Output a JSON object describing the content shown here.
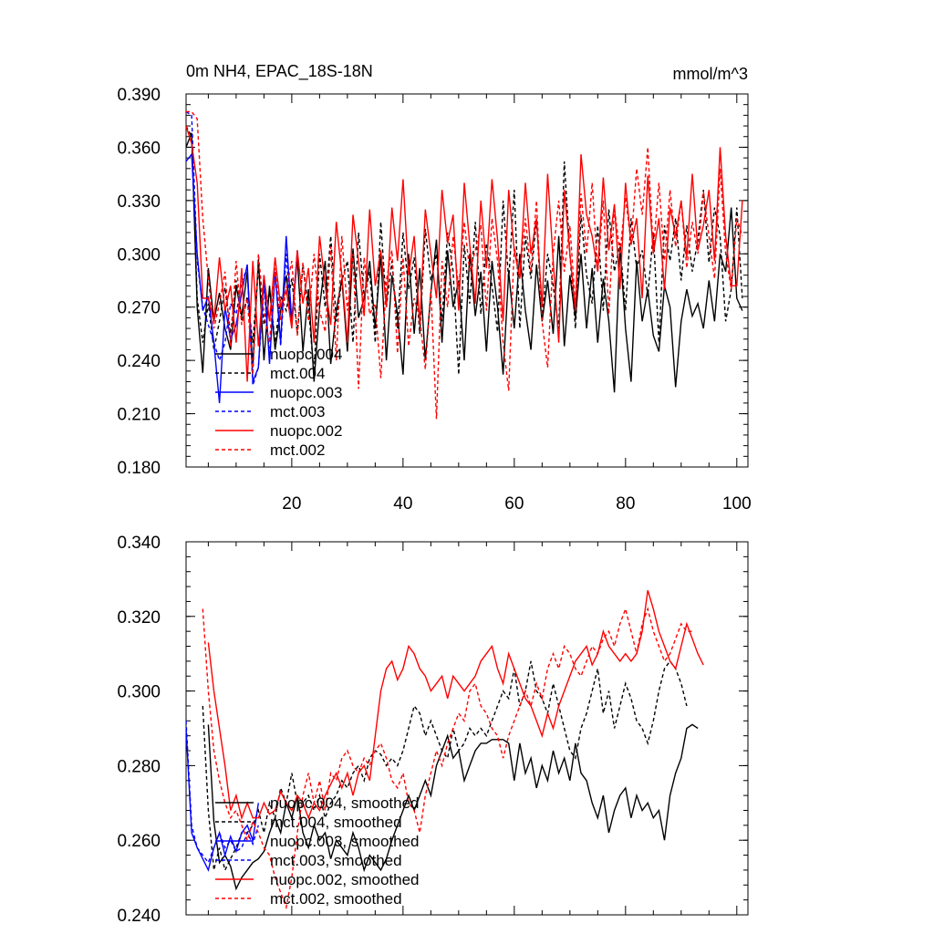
{
  "chart_data": [
    {
      "type": "line",
      "title_left": "0m NH4, EPAC_18S-18N",
      "title_right": "mmol/m^3",
      "xlabel": "",
      "ylabel": "",
      "xlim": [
        1,
        102
      ],
      "ylim": [
        0.18,
        0.39
      ],
      "xticks": [
        20,
        40,
        60,
        80,
        100
      ],
      "yticks": [
        0.18,
        0.21,
        0.24,
        0.27,
        0.3,
        0.33,
        0.36,
        0.39
      ],
      "ytick_labels": [
        "0.180",
        "0.210",
        "0.240",
        "0.270",
        "0.300",
        "0.330",
        "0.360",
        "0.390"
      ],
      "xtick_labels": [
        "20",
        "40",
        "60",
        "80",
        "100"
      ],
      "legend_position": "lower-left",
      "series": [
        {
          "name": "nuopc.004",
          "color": "#000000",
          "dash": "solid",
          "x_start": 1,
          "values": [
            0.36,
            0.368,
            0.27,
            0.233,
            0.292,
            0.262,
            0.278,
            0.258,
            0.246,
            0.282,
            0.265,
            0.29,
            0.236,
            0.297,
            0.24,
            0.282,
            0.246,
            0.268,
            0.288,
            0.262,
            0.298,
            0.245,
            0.28,
            0.228,
            0.27,
            0.296,
            0.238,
            0.268,
            0.286,
            0.245,
            0.303,
            0.264,
            0.275,
            0.296,
            0.258,
            0.3,
            0.24,
            0.288,
            0.266,
            0.232,
            0.3,
            0.255,
            0.292,
            0.24,
            0.278,
            0.308,
            0.25,
            0.302,
            0.27,
            0.285,
            0.24,
            0.3,
            0.265,
            0.29,
            0.245,
            0.296,
            0.27,
            0.232,
            0.29,
            0.258,
            0.3,
            0.268,
            0.246,
            0.294,
            0.262,
            0.285,
            0.255,
            0.31,
            0.248,
            0.288,
            0.264,
            0.3,
            0.258,
            0.292,
            0.25,
            0.286,
            0.262,
            0.222,
            0.304,
            0.258,
            0.228,
            0.296,
            0.262,
            0.28,
            0.254,
            0.245,
            0.282,
            0.27,
            0.225,
            0.262,
            0.28,
            0.265,
            0.272,
            0.258,
            0.285,
            0.262,
            0.3,
            0.29,
            0.326,
            0.275,
            0.268
          ]
        },
        {
          "name": "mct.004",
          "color": "#000000",
          "dash": "dashed",
          "x_start": 1,
          "values": [
            0.372,
            0.366,
            0.275,
            0.25,
            0.272,
            0.246,
            0.262,
            0.281,
            0.255,
            0.285,
            0.262,
            0.276,
            0.25,
            0.292,
            0.26,
            0.28,
            0.25,
            0.276,
            0.268,
            0.286,
            0.255,
            0.294,
            0.27,
            0.232,
            0.3,
            0.27,
            0.31,
            0.262,
            0.285,
            0.296,
            0.25,
            0.312,
            0.275,
            0.29,
            0.25,
            0.318,
            0.27,
            0.296,
            0.258,
            0.312,
            0.28,
            0.298,
            0.255,
            0.314,
            0.285,
            0.3,
            0.262,
            0.312,
            0.29,
            0.232,
            0.305,
            0.272,
            0.318,
            0.266,
            0.306,
            0.282,
            0.256,
            0.33,
            0.285,
            0.336,
            0.258,
            0.31,
            0.286,
            0.32,
            0.262,
            0.3,
            0.282,
            0.258,
            0.352,
            0.3,
            0.258,
            0.322,
            0.288,
            0.272,
            0.316,
            0.268,
            0.325,
            0.29,
            0.306,
            0.268,
            0.32,
            0.292,
            0.302,
            0.276,
            0.312,
            0.25,
            0.316,
            0.296,
            0.32,
            0.285,
            0.316,
            0.29,
            0.308,
            0.336,
            0.295,
            0.326,
            0.31,
            0.262,
            0.28,
            0.326,
            0.275
          ]
        },
        {
          "name": "nuopc.003",
          "color": "#0000ff",
          "dash": "solid",
          "x_start": 1,
          "values": [
            0.352,
            0.356,
            0.3,
            0.268,
            0.276,
            0.25,
            0.216,
            0.27,
            0.252,
            0.26,
            0.278,
            0.294,
            0.228,
            0.236,
            0.288,
            0.238,
            0.29,
            0.25,
            0.31,
            0.262,
            0.302
          ]
        },
        {
          "name": "mct.003",
          "color": "#0000ff",
          "dash": "dashed",
          "x_start": 1,
          "values": [
            0.38,
            0.378,
            0.296,
            0.27,
            0.26,
            0.25,
            0.24,
            0.25,
            0.272,
            0.266,
            0.284,
            0.292,
            0.226,
            0.236,
            0.282,
            0.242,
            0.29,
            0.248,
            0.3,
            0.26,
            0.298
          ]
        },
        {
          "name": "nuopc.002",
          "color": "#ff0000",
          "dash": "solid",
          "x_start": 1,
          "values": [
            0.372,
            0.362,
            0.34,
            0.275,
            0.275,
            0.262,
            0.298,
            0.268,
            0.282,
            0.25,
            0.292,
            0.228,
            0.296,
            0.248,
            0.288,
            0.262,
            0.298,
            0.27,
            0.28,
            0.258,
            0.302,
            0.272,
            0.292,
            0.25,
            0.31,
            0.282,
            0.26,
            0.318,
            0.288,
            0.25,
            0.322,
            0.296,
            0.265,
            0.325,
            0.282,
            0.302,
            0.27,
            0.326,
            0.296,
            0.342,
            0.288,
            0.31,
            0.26,
            0.325,
            0.3,
            0.275,
            0.336,
            0.306,
            0.322,
            0.268,
            0.34,
            0.305,
            0.272,
            0.33,
            0.292,
            0.342,
            0.308,
            0.262,
            0.336,
            0.302,
            0.286,
            0.34,
            0.3,
            0.32,
            0.27,
            0.345,
            0.296,
            0.25,
            0.336,
            0.3,
            0.268,
            0.356,
            0.322,
            0.31,
            0.29,
            0.343,
            0.302,
            0.328,
            0.28,
            0.34,
            0.305,
            0.32,
            0.275,
            0.344,
            0.3,
            0.32,
            0.28,
            0.326,
            0.31,
            0.33,
            0.298,
            0.345,
            0.302,
            0.316,
            0.336,
            0.296,
            0.36,
            0.31,
            0.282,
            0.282,
            0.33
          ]
        },
        {
          "name": "mct.002",
          "color": "#ff0000",
          "dash": "dashed",
          "x_start": 1,
          "values": [
            0.38,
            0.38,
            0.376,
            0.32,
            0.286,
            0.258,
            0.272,
            0.29,
            0.248,
            0.296,
            0.26,
            0.275,
            0.232,
            0.3,
            0.266,
            0.25,
            0.292,
            0.262,
            0.28,
            0.296,
            0.254,
            0.295,
            0.262,
            0.3,
            0.268,
            0.256,
            0.304,
            0.24,
            0.31,
            0.268,
            0.3,
            0.224,
            0.298,
            0.266,
            0.272,
            0.23,
            0.285,
            0.302,
            0.244,
            0.298,
            0.248,
            0.275,
            0.264,
            0.235,
            0.28,
            0.207,
            0.296,
            0.27,
            0.31,
            0.28,
            0.318,
            0.29,
            0.302,
            0.316,
            0.268,
            0.32,
            0.296,
            0.25,
            0.223,
            0.304,
            0.286,
            0.32,
            0.29,
            0.33,
            0.262,
            0.236,
            0.3,
            0.33,
            0.29,
            0.316,
            0.27,
            0.334,
            0.3,
            0.34,
            0.29,
            0.33,
            0.266,
            0.326,
            0.3,
            0.332,
            0.306,
            0.348,
            0.322,
            0.36,
            0.302,
            0.34,
            0.296,
            0.336,
            0.304,
            0.33,
            0.292,
            0.318,
            0.3,
            0.335,
            0.31,
            0.286,
            0.348,
            0.3,
            0.28,
            0.32,
            0.31
          ]
        }
      ]
    },
    {
      "type": "line",
      "title_left": "",
      "title_right": "",
      "xlabel": "",
      "ylabel": "",
      "xlim": [
        1,
        102
      ],
      "ylim": [
        0.24,
        0.34
      ],
      "xticks": [
        20,
        40,
        60,
        80,
        100
      ],
      "yticks": [
        0.24,
        0.26,
        0.28,
        0.3,
        0.32,
        0.34
      ],
      "ytick_labels": [
        "0.240",
        "0.260",
        "0.280",
        "0.300",
        "0.320",
        "0.340"
      ],
      "xtick_labels": [],
      "legend_position": "lower-left",
      "series": [
        {
          "name": "nuopc.004, smoothed",
          "color": "#000000",
          "dash": "solid",
          "x_start": 5,
          "values": [
            0.291,
            0.265,
            0.254,
            0.256,
            0.253,
            0.247,
            0.25,
            0.252,
            0.254,
            0.255,
            0.257,
            0.262,
            0.266,
            0.262,
            0.27,
            0.266,
            0.272,
            0.262,
            0.258,
            0.264,
            0.26,
            0.262,
            0.255,
            0.26,
            0.258,
            0.256,
            0.262,
            0.258,
            0.252,
            0.256,
            0.254,
            0.252,
            0.255,
            0.26,
            0.264,
            0.268,
            0.272,
            0.268,
            0.272,
            0.276,
            0.272,
            0.28,
            0.284,
            0.288,
            0.282,
            0.284,
            0.276,
            0.28,
            0.284,
            0.286,
            0.286,
            0.287,
            0.287,
            0.287,
            0.286,
            0.276,
            0.286,
            0.278,
            0.282,
            0.274,
            0.28,
            0.276,
            0.284,
            0.278,
            0.282,
            0.276,
            0.286,
            0.278,
            0.276,
            0.27,
            0.266,
            0.272,
            0.262,
            0.268,
            0.272,
            0.274,
            0.266,
            0.272,
            0.268,
            0.27,
            0.266,
            0.268,
            0.26,
            0.272,
            0.278,
            0.282,
            0.29,
            0.291,
            0.29
          ]
        },
        {
          "name": "mct.004, smoothed",
          "color": "#000000",
          "dash": "dashed",
          "x_start": 4,
          "values": [
            0.296,
            0.268,
            0.252,
            0.258,
            0.252,
            0.255,
            0.258,
            0.262,
            0.262,
            0.264,
            0.268,
            0.262,
            0.27,
            0.266,
            0.274,
            0.27,
            0.278,
            0.27,
            0.27,
            0.272,
            0.268,
            0.272,
            0.266,
            0.27,
            0.272,
            0.276,
            0.274,
            0.278,
            0.28,
            0.276,
            0.282,
            0.284,
            0.283,
            0.28,
            0.282,
            0.28,
            0.284,
            0.29,
            0.296,
            0.294,
            0.288,
            0.292,
            0.288,
            0.284,
            0.282,
            0.29,
            0.284,
            0.286,
            0.29,
            0.288,
            0.29,
            0.288,
            0.292,
            0.296,
            0.3,
            0.298,
            0.306,
            0.296,
            0.3,
            0.308,
            0.3,
            0.298,
            0.294,
            0.302,
            0.296,
            0.29,
            0.284,
            0.282,
            0.29,
            0.294,
            0.3,
            0.306,
            0.294,
            0.3,
            0.29,
            0.296,
            0.302,
            0.298,
            0.292,
            0.29,
            0.286,
            0.292,
            0.3,
            0.306,
            0.308,
            0.306,
            0.302,
            0.296
          ]
        },
        {
          "name": "nuopc.003, smoothed",
          "color": "#0000ff",
          "dash": "solid",
          "x_start": 1,
          "values": [
            0.29,
            0.262,
            0.258,
            0.255,
            0.252,
            0.258,
            0.262,
            0.256,
            0.261,
            0.257,
            0.262,
            0.264,
            0.26,
            0.27
          ]
        },
        {
          "name": "mct.003, smoothed",
          "color": "#0000ff",
          "dash": "dashed",
          "x_start": 1,
          "values": [
            0.292,
            0.264,
            0.258,
            0.256,
            0.254,
            0.258,
            0.262,
            0.258,
            0.26,
            0.257,
            0.258,
            0.262,
            0.259,
            0.264
          ]
        },
        {
          "name": "nuopc.002, smoothed",
          "color": "#ff0000",
          "dash": "solid",
          "x_start": 5,
          "values": [
            0.313,
            0.3,
            0.29,
            0.28,
            0.268,
            0.272,
            0.266,
            0.27,
            0.266,
            0.266,
            0.27,
            0.267,
            0.268,
            0.273,
            0.27,
            0.268,
            0.272,
            0.27,
            0.266,
            0.27,
            0.268,
            0.272,
            0.275,
            0.278,
            0.274,
            0.278,
            0.272,
            0.278,
            0.28,
            0.276,
            0.288,
            0.3,
            0.306,
            0.308,
            0.303,
            0.306,
            0.312,
            0.31,
            0.306,
            0.304,
            0.3,
            0.302,
            0.304,
            0.298,
            0.304,
            0.302,
            0.3,
            0.302,
            0.304,
            0.308,
            0.31,
            0.312,
            0.306,
            0.302,
            0.31,
            0.306,
            0.302,
            0.298,
            0.296,
            0.292,
            0.288,
            0.294,
            0.29,
            0.296,
            0.3,
            0.304,
            0.308,
            0.31,
            0.312,
            0.307,
            0.31,
            0.316,
            0.312,
            0.31,
            0.308,
            0.31,
            0.308,
            0.31,
            0.316,
            0.327,
            0.322,
            0.316,
            0.312,
            0.308,
            0.306,
            0.312,
            0.318,
            0.314,
            0.31,
            0.307
          ]
        },
        {
          "name": "mct.002, smoothed",
          "color": "#ff0000",
          "dash": "dashed",
          "x_start": 4,
          "values": [
            0.322,
            0.3,
            0.284,
            0.276,
            0.27,
            0.266,
            0.268,
            0.264,
            0.26,
            0.265,
            0.262,
            0.258,
            0.256,
            0.25,
            0.246,
            0.242,
            0.25,
            0.262,
            0.272,
            0.278,
            0.27,
            0.276,
            0.268,
            0.278,
            0.276,
            0.282,
            0.284,
            0.28,
            0.278,
            0.282,
            0.28,
            0.284,
            0.286,
            0.282,
            0.276,
            0.274,
            0.278,
            0.27,
            0.268,
            0.262,
            0.272,
            0.278,
            0.284,
            0.28,
            0.286,
            0.29,
            0.294,
            0.292,
            0.3,
            0.302,
            0.296,
            0.294,
            0.29,
            0.288,
            0.282,
            0.288,
            0.292,
            0.296,
            0.3,
            0.296,
            0.302,
            0.298,
            0.306,
            0.31,
            0.306,
            0.312,
            0.31,
            0.306,
            0.304,
            0.308,
            0.312,
            0.31,
            0.314,
            0.316,
            0.312,
            0.318,
            0.322,
            0.316,
            0.31,
            0.318,
            0.322,
            0.316,
            0.312,
            0.308,
            0.31,
            0.314,
            0.318,
            0.316,
            0.316
          ]
        }
      ]
    }
  ]
}
